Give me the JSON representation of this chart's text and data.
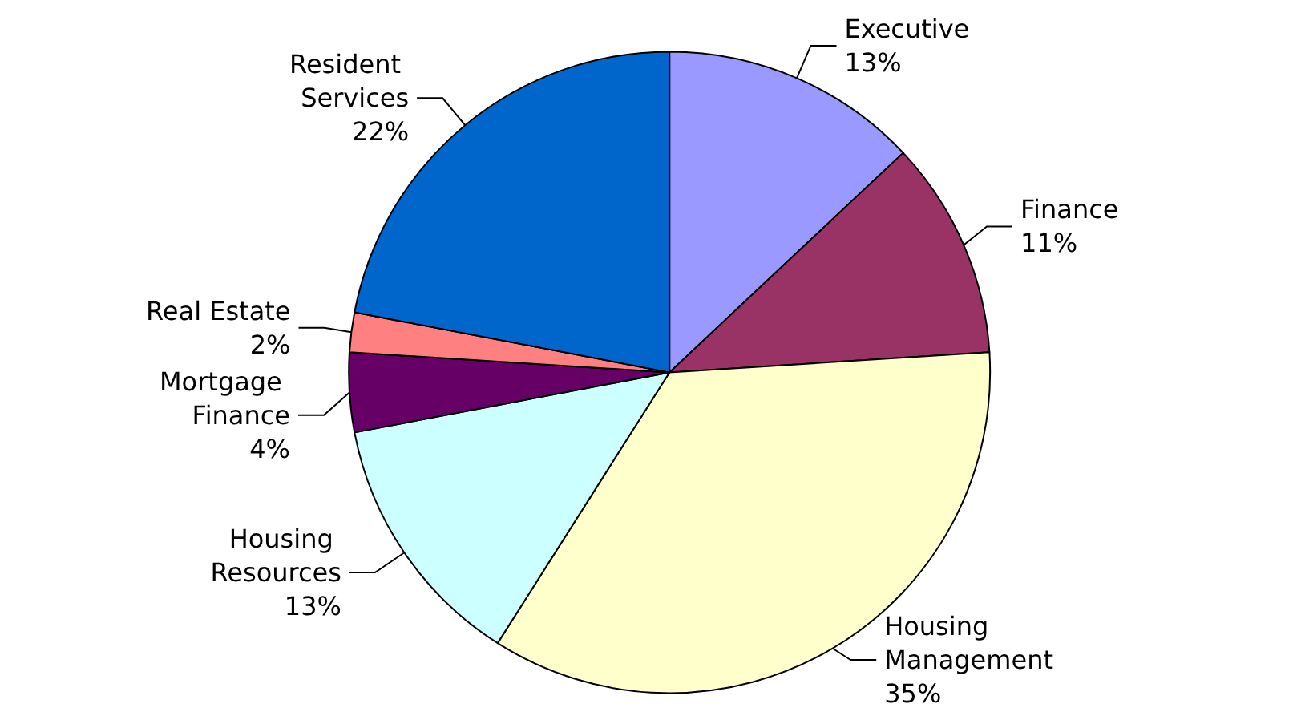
{
  "chart_data": {
    "type": "pie",
    "categories": [
      "Executive",
      "Finance",
      "Housing Management",
      "Housing Resources",
      "Mortgage Finance",
      "Real Estate",
      "Resident Services"
    ],
    "values": [
      13,
      11,
      35,
      13,
      4,
      2,
      22
    ],
    "colors": [
      "#9999ff",
      "#993366",
      "#ffffcc",
      "#ccffff",
      "#660066",
      "#ff8080",
      "#0066cc"
    ],
    "value_labels": [
      "13%",
      "11%",
      "35%",
      "13%",
      "4%",
      "2%",
      "22%"
    ],
    "legend": false
  }
}
